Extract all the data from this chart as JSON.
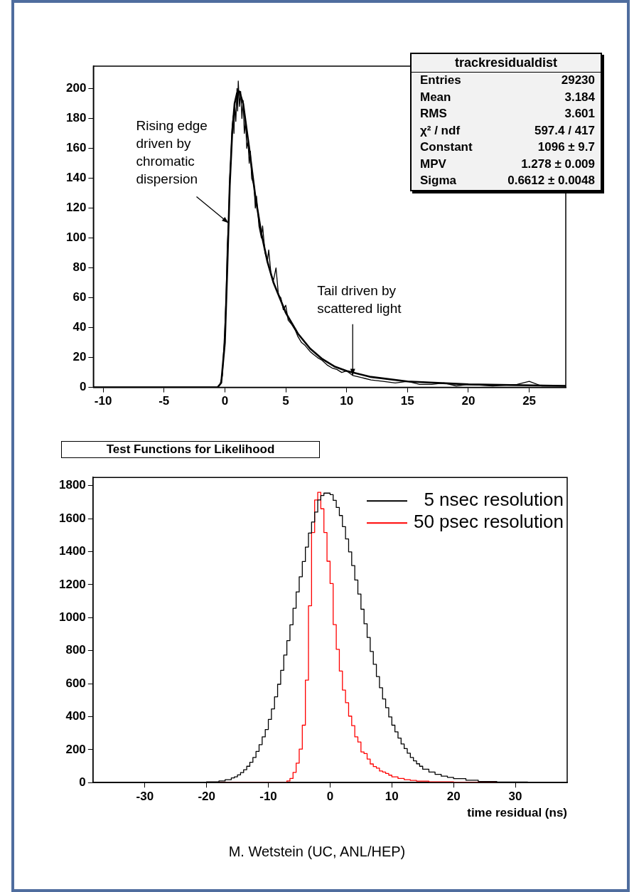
{
  "chart_data": [
    {
      "type": "line",
      "title": "trackresidualdist",
      "xlim": [
        -10.8,
        28
      ],
      "ylim": [
        0,
        215
      ],
      "xticks": [
        -10,
        -5,
        0,
        5,
        10,
        15,
        20,
        25
      ],
      "yticks": [
        0,
        20,
        40,
        60,
        80,
        100,
        120,
        140,
        160,
        180,
        200
      ],
      "grid": false,
      "legend": false,
      "series": [
        {
          "color": "#000000",
          "x": [
            -10.8,
            -1,
            -0.6,
            -0.4,
            -0.2,
            0,
            0.1,
            0.2,
            0.3,
            0.4,
            0.5,
            0.6,
            0.7,
            0.75,
            0.8,
            0.9,
            1.0,
            1.05,
            1.1,
            1.2,
            1.3,
            1.4,
            1.5,
            1.6,
            1.7,
            1.8,
            1.9,
            2.0,
            2.1,
            2.2,
            2.4,
            2.5,
            2.6,
            2.8,
            3.0,
            3.1,
            3.3,
            3.5,
            3.6,
            3.8,
            4.0,
            4.2,
            4.4,
            4.6,
            4.8,
            5.0,
            5.2,
            5.5,
            5.8,
            6.0,
            6.3,
            6.6,
            7.0,
            7.3,
            7.6,
            8.0,
            8.4,
            8.8,
            9.2,
            9.6,
            10,
            10.5,
            11,
            11.5,
            12,
            13,
            14,
            15,
            16,
            17,
            18,
            19,
            20,
            22,
            24,
            25,
            26,
            28
          ],
          "values": [
            0,
            0,
            0,
            2,
            8,
            40,
            60,
            95,
            110,
            140,
            155,
            175,
            182,
            170,
            190,
            178,
            200,
            185,
            205,
            188,
            198,
            180,
            192,
            170,
            178,
            160,
            165,
            150,
            158,
            140,
            135,
            120,
            128,
            108,
            100,
            108,
            90,
            85,
            92,
            75,
            72,
            80,
            62,
            60,
            52,
            55,
            45,
            42,
            38,
            34,
            30,
            28,
            24,
            22,
            20,
            18,
            15,
            13,
            12,
            10,
            11,
            8,
            7,
            6,
            5,
            4,
            3,
            4,
            2,
            2,
            3,
            1,
            2,
            1,
            2,
            4,
            1,
            1
          ]
        },
        {
          "color": "#000000",
          "x": [
            -10.8,
            -0.6,
            -0.3,
            0,
            0.2,
            0.4,
            0.6,
            0.8,
            1.0,
            1.2,
            1.5,
            2.0,
            2.5,
            3.0,
            3.5,
            4,
            5,
            6,
            7,
            8,
            9,
            10,
            12,
            15,
            20,
            28
          ],
          "values": [
            0,
            0,
            3,
            30,
            80,
            135,
            170,
            190,
            197,
            198,
            190,
            160,
            128,
            103,
            84,
            70,
            50,
            36,
            26,
            19,
            14,
            11,
            7,
            4,
            2,
            1
          ]
        }
      ],
      "annotations": [
        {
          "text": "Rising edge driven by chromatic dispersion",
          "x": 0.3,
          "y": 110
        },
        {
          "text": "Tail driven by scattered light",
          "x": 10.5,
          "y": 8
        },
        "Entries",
        "29230",
        "Mean",
        "3.184",
        "RMS",
        "3.601",
        "χ² / ndf",
        "597.4 / 417",
        "Constant",
        "1096 ± 9.7",
        "MPV",
        "1.278 ± 0.009",
        "Sigma",
        "0.6612 ± 0.0048"
      ]
    },
    {
      "type": "histogram",
      "title": "Test Functions for Likelihood",
      "xlabel": "time residual (ns)",
      "xlim": [
        -38.4,
        38.4
      ],
      "ylim": [
        0,
        1850
      ],
      "xticks": [
        -30,
        -20,
        -10,
        0,
        10,
        20,
        30
      ],
      "yticks": [
        0,
        200,
        400,
        600,
        800,
        1000,
        1200,
        1400,
        1600,
        1800
      ],
      "grid": false,
      "legend": "top right",
      "bins": [
        -25,
        -20,
        -18,
        -17,
        -16,
        -15.5,
        -15,
        -14.5,
        -14,
        -13.5,
        -13,
        -12.5,
        -12,
        -11.5,
        -11,
        -10.5,
        -10,
        -9.5,
        -9,
        -8.5,
        -8,
        -7.5,
        -7,
        -6.5,
        -6,
        -5.5,
        -5,
        -4.5,
        -4,
        -3.5,
        -3,
        -2.5,
        -2,
        -1.5,
        -1,
        -0.5,
        0,
        0.5,
        1,
        1.5,
        2,
        2.5,
        3,
        3.5,
        4,
        4.5,
        5,
        5.5,
        6,
        6.5,
        7,
        7.5,
        8,
        8.5,
        9,
        9.5,
        10,
        10.5,
        11,
        11.5,
        12,
        12.5,
        13,
        13.5,
        14,
        14.5,
        15,
        16,
        17,
        18,
        19,
        20,
        22,
        24,
        27,
        32
      ],
      "series": [
        {
          "name": "5 nsec resolution",
          "color": "#000000",
          "values": [
            2,
            5,
            10,
            18,
            28,
            35,
            47,
            61,
            78,
            99,
            123,
            152,
            189,
            230,
            277,
            322,
            383,
            447,
            520,
            596,
            681,
            773,
            861,
            957,
            1057,
            1156,
            1248,
            1340,
            1428,
            1513,
            1580,
            1640,
            1713,
            1740,
            1755,
            1755,
            1746,
            1711,
            1668,
            1619,
            1552,
            1477,
            1399,
            1316,
            1228,
            1143,
            1051,
            963,
            880,
            795,
            717,
            643,
            575,
            507,
            454,
            398,
            348,
            308,
            270,
            234,
            206,
            178,
            152,
            132,
            114,
            99,
            81,
            64,
            50,
            39,
            32,
            24,
            14,
            7,
            3
          ]
        },
        {
          "name": "50 psec resolution",
          "color": "#ff0000",
          "values": [
            0,
            0,
            0,
            0,
            0,
            0,
            0,
            0,
            0,
            0,
            0,
            0,
            0,
            0,
            0,
            0,
            0,
            0,
            0,
            0,
            0,
            0,
            10,
            25,
            62,
            118,
            203,
            348,
            621,
            1072,
            1516,
            1713,
            1760,
            1660,
            1516,
            1342,
            1207,
            958,
            808,
            676,
            561,
            484,
            403,
            345,
            277,
            246,
            186,
            176,
            143,
            113,
            97,
            88,
            70,
            64,
            55,
            45,
            35,
            35,
            25,
            25,
            18,
            18,
            13,
            13,
            9,
            9,
            9,
            5,
            5,
            5,
            5,
            2,
            2,
            1,
            0
          ]
        }
      ],
      "annotations": [
        "M. Wetstein (UC, ANL/HEP)"
      ]
    }
  ]
}
